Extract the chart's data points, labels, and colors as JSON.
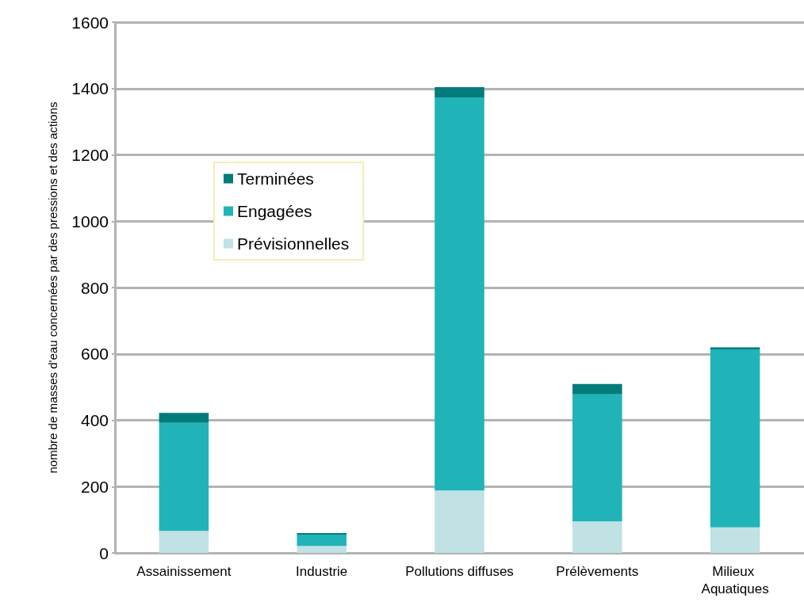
{
  "chart_data": {
    "type": "bar",
    "stacked": true,
    "ylabel": "nombre de masses d'eau concernées par des pressions et des actions",
    "categories": [
      "Assainissement",
      "Industrie",
      "Pollutions diffuses",
      "Prélèvements",
      "Milieux Aquatiques"
    ],
    "series": [
      {
        "name": "Prévisionnelles",
        "color": "#c0e2e4",
        "values": [
          66,
          21,
          188,
          95,
          77
        ]
      },
      {
        "name": "Engagées",
        "color": "#20b4b8",
        "values": [
          326,
          34,
          1185,
          383,
          537
        ]
      },
      {
        "name": "Terminées",
        "color": "#037b7b",
        "values": [
          30,
          5,
          31,
          31,
          6
        ]
      }
    ],
    "ylim": [
      0,
      1600
    ],
    "yticks": [
      0,
      200,
      400,
      600,
      800,
      1000,
      1200,
      1400,
      1600
    ],
    "grid": "y",
    "legend": "top left"
  }
}
